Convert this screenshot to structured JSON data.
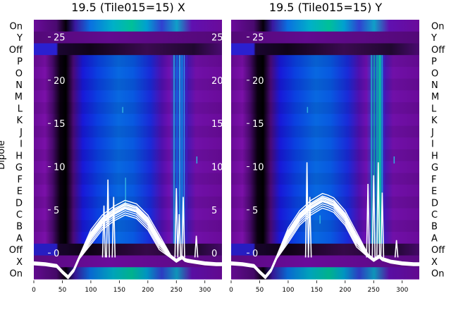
{
  "chart_data": [
    {
      "type": "heatmap",
      "title": "19.5 (Tile015=15) X",
      "ylabel": "Dipole",
      "xlim": [
        0,
        330
      ],
      "xticks": [
        0,
        50,
        100,
        150,
        200,
        250,
        300
      ],
      "overlay_ylim": [
        -3,
        27
      ],
      "overlay_yticks": [
        0,
        5,
        10,
        15,
        20,
        25
      ],
      "rows_top_to_bottom": [
        "On",
        "Y",
        "Off",
        "P",
        "O",
        "N",
        "M",
        "L",
        "K",
        "J",
        "I",
        "H",
        "G",
        "F",
        "E",
        "D",
        "C",
        "B",
        "A",
        "Off",
        "X",
        "On"
      ],
      "colormap": [
        "#000000",
        "#5a0a82",
        "#8000c0",
        "#1010e0",
        "#0070e0",
        "#00b0c0",
        "#00c890"
      ],
      "overlay_series": {
        "x": [
          0,
          20,
          40,
          50,
          60,
          70,
          80,
          100,
          120,
          140,
          160,
          170,
          180,
          200,
          220,
          240,
          250,
          255,
          260,
          265,
          270,
          280,
          290,
          300,
          320,
          330
        ],
        "y": [
          -1.2,
          -1.3,
          -1.5,
          -2.2,
          -2.8,
          -2.0,
          -0.5,
          1.8,
          3.5,
          4.5,
          5.2,
          5.0,
          4.8,
          3.5,
          1.2,
          -0.4,
          -0.9,
          -0.7,
          -0.5,
          -0.8,
          -0.9,
          -1.0,
          -1.1,
          -1.2,
          -1.3,
          -1.3
        ]
      }
    },
    {
      "type": "heatmap",
      "title": "19.5 (Tile015=15) Y",
      "ylabel": "Dipole",
      "xlim": [
        0,
        330
      ],
      "xticks": [
        0,
        50,
        100,
        150,
        200,
        250,
        300
      ],
      "overlay_ylim": [
        -3,
        27
      ],
      "overlay_yticks": [
        0,
        5,
        10,
        15,
        20,
        25
      ],
      "rows_top_to_bottom": [
        "On",
        "Y",
        "Off",
        "P",
        "O",
        "N",
        "M",
        "L",
        "K",
        "J",
        "I",
        "H",
        "G",
        "F",
        "E",
        "D",
        "C",
        "B",
        "A",
        "Off",
        "X",
        "On"
      ],
      "colormap": [
        "#000000",
        "#5a0a82",
        "#8000c0",
        "#1010e0",
        "#0070e0",
        "#00b0c0",
        "#00c890"
      ],
      "overlay_series": {
        "x": [
          0,
          20,
          40,
          50,
          60,
          70,
          80,
          100,
          120,
          140,
          160,
          170,
          180,
          200,
          220,
          240,
          250,
          255,
          260,
          265,
          270,
          280,
          290,
          300,
          320,
          330
        ],
        "y": [
          -1.2,
          -1.3,
          -1.5,
          -2.2,
          -2.8,
          -2.0,
          -0.5,
          2.0,
          4.0,
          5.2,
          6.0,
          5.8,
          5.5,
          4.0,
          1.5,
          -0.3,
          -0.8,
          -0.6,
          -0.4,
          -0.7,
          -0.8,
          -1.0,
          -1.1,
          -1.2,
          -1.3,
          -1.3
        ]
      }
    }
  ]
}
